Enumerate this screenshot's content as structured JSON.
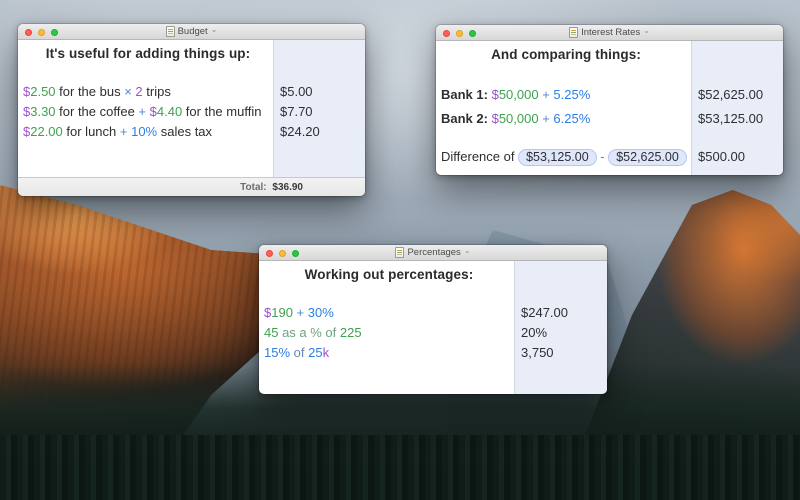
{
  "colors": {
    "dark": "#2e2e33",
    "green": "#3fa150",
    "purple": "#9b51cc",
    "op": "#5585d6",
    "pct": "#2c7ee8",
    "phrase": "#6fa183",
    "phrase2": "#6b87b8",
    "pill_bg": "#dfe7fa",
    "pill_border": "#b9c6ee",
    "answer_column_bg": "#e9edf7",
    "traffic_close": "#ff5f57",
    "traffic_minimize": "#febc2e",
    "traffic_zoom": "#28c841"
  },
  "icons": {
    "document_icon": "document-proxy-icon",
    "title_chevron": "⌄"
  },
  "windows": {
    "budget": {
      "title": "Budget",
      "heading": "It's useful for adding things up:",
      "rows": [
        {
          "tokens": [
            {
              "t": "$",
              "c": "purple"
            },
            {
              "t": "2.50",
              "c": "green"
            },
            {
              "t": " for the bus ",
              "c": "dark"
            },
            {
              "t": "× ",
              "c": "op"
            },
            {
              "t": "2",
              "c": "purple"
            },
            {
              "t": " trips",
              "c": "dark"
            }
          ],
          "answer": "$5.00"
        },
        {
          "tokens": [
            {
              "t": "$",
              "c": "purple"
            },
            {
              "t": "3.30",
              "c": "green"
            },
            {
              "t": " for the coffee ",
              "c": "dark"
            },
            {
              "t": "+ ",
              "c": "op"
            },
            {
              "t": "$",
              "c": "purple"
            },
            {
              "t": "4.40",
              "c": "green"
            },
            {
              "t": " for the muffin",
              "c": "dark"
            }
          ],
          "answer": "$7.70"
        },
        {
          "tokens": [
            {
              "t": "$",
              "c": "purple"
            },
            {
              "t": "22.00",
              "c": "green"
            },
            {
              "t": " for lunch ",
              "c": "dark"
            },
            {
              "t": "+ ",
              "c": "op"
            },
            {
              "t": "10%",
              "c": "pct"
            },
            {
              "t": " sales tax",
              "c": "dark"
            }
          ],
          "answer": "$24.20"
        }
      ],
      "total_label": "Total:",
      "total_value": "$36.90"
    },
    "interest": {
      "title": "Interest Rates",
      "heading": "And comparing things:",
      "rows": [
        {
          "tokens": [
            {
              "t": "Bank 1: ",
              "c": "dark",
              "b": true
            },
            {
              "t": "$",
              "c": "purple"
            },
            {
              "t": "50,000",
              "c": "green"
            },
            {
              "t": " + ",
              "c": "op"
            },
            {
              "t": "5.25%",
              "c": "pct"
            }
          ],
          "answer": "$52,625.00"
        },
        {
          "tokens": [
            {
              "t": "Bank 2: ",
              "c": "dark",
              "b": true
            },
            {
              "t": "$",
              "c": "purple"
            },
            {
              "t": "50,000",
              "c": "green"
            },
            {
              "t": " + ",
              "c": "op"
            },
            {
              "t": "6.25%",
              "c": "pct"
            }
          ],
          "answer": "$53,125.00"
        },
        {
          "tokens": [
            {
              "t": "Difference of ",
              "c": "dark"
            },
            {
              "t": "$53,125.00",
              "c": "dark",
              "pill": true
            },
            {
              "t": " - ",
              "c": "op"
            },
            {
              "t": "$52,625.00",
              "c": "dark",
              "pill": true
            }
          ],
          "answer": "$500.00"
        }
      ]
    },
    "percentages": {
      "title": "Percentages",
      "heading": "Working out percentages:",
      "rows": [
        {
          "tokens": [
            {
              "t": "$",
              "c": "purple"
            },
            {
              "t": "190",
              "c": "green"
            },
            {
              "t": " + ",
              "c": "op"
            },
            {
              "t": "30%",
              "c": "pct"
            }
          ],
          "answer": "$247.00"
        },
        {
          "tokens": [
            {
              "t": "45",
              "c": "green"
            },
            {
              "t": " as a % of ",
              "c": "phrase"
            },
            {
              "t": "225",
              "c": "green"
            }
          ],
          "answer": "20%"
        },
        {
          "tokens": [
            {
              "t": "15%",
              "c": "pct"
            },
            {
              "t": " of ",
              "c": "phrase2"
            },
            {
              "t": "25",
              "c": "pct"
            },
            {
              "t": "k",
              "c": "purple"
            }
          ],
          "answer": "3,750"
        }
      ]
    }
  }
}
